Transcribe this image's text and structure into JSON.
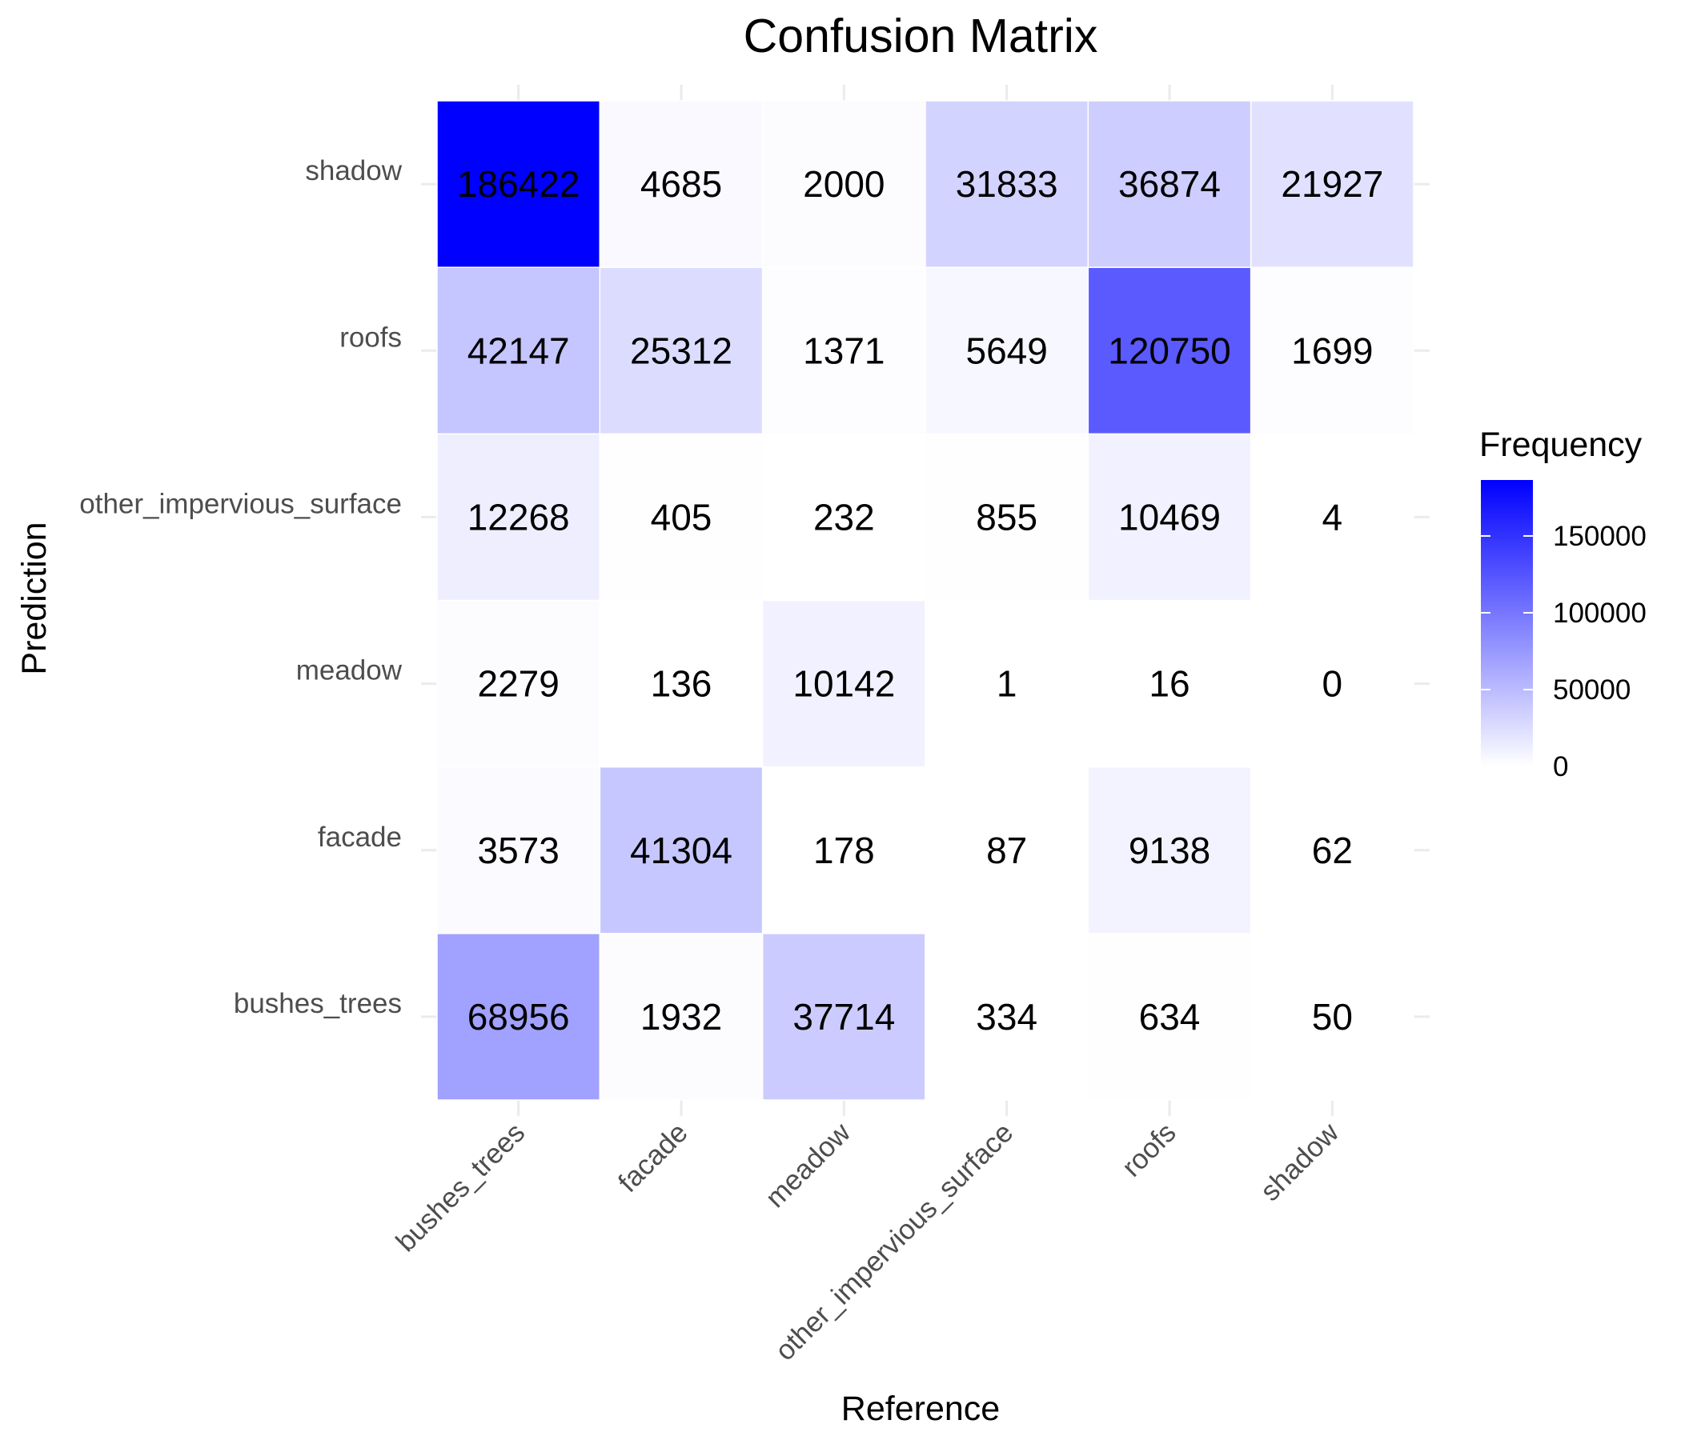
{
  "chart_data": {
    "type": "heatmap",
    "title": "Confusion Matrix",
    "xlabel": "Reference",
    "ylabel": "Prediction",
    "x_categories": [
      "bushes_trees",
      "facade",
      "meadow",
      "other_impervious_surface",
      "roofs",
      "shadow"
    ],
    "y_categories": [
      "bushes_trees",
      "facade",
      "meadow",
      "other_impervious_surface",
      "roofs",
      "shadow"
    ],
    "values": [
      [
        68956,
        1932,
        37714,
        334,
        634,
        50
      ],
      [
        3573,
        41304,
        178,
        87,
        9138,
        62
      ],
      [
        2279,
        136,
        10142,
        1,
        16,
        0
      ],
      [
        12268,
        405,
        232,
        855,
        10469,
        4
      ],
      [
        42147,
        25312,
        1371,
        5649,
        120750,
        1699
      ],
      [
        186422,
        4685,
        2000,
        31833,
        36874,
        21927
      ]
    ],
    "legend": {
      "title": "Frequency",
      "ticks": [
        "0",
        "50000",
        "100000",
        "150000"
      ],
      "tick_values": [
        0,
        50000,
        100000,
        150000
      ],
      "min": 0,
      "max": 186422,
      "placement": "right"
    },
    "colors": {
      "low": "#ffffff",
      "high": "#0000ff"
    },
    "grid": true
  }
}
